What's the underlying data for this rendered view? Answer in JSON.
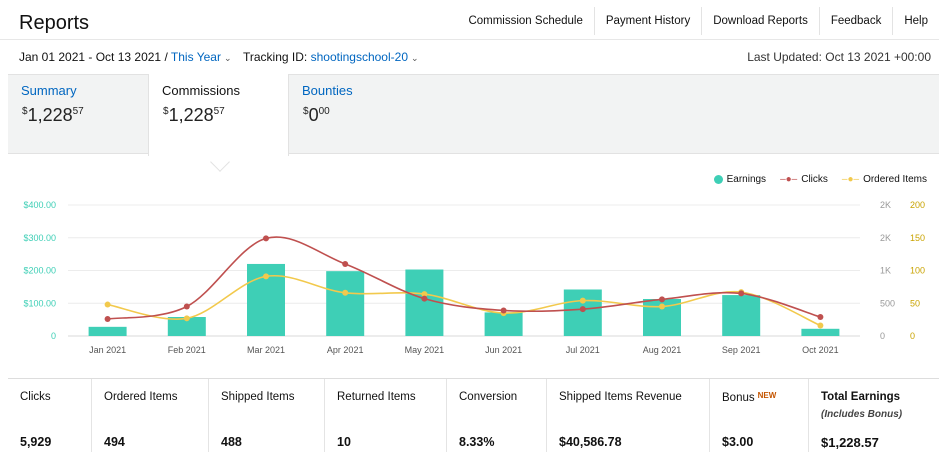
{
  "header": {
    "title": "Reports",
    "links": [
      "Commission Schedule",
      "Payment History",
      "Download Reports",
      "Feedback",
      "Help"
    ]
  },
  "filters": {
    "date_range": "Jan 01 2021 - Oct 13 2021",
    "separator": "/",
    "period": "This Year",
    "tracking_label": "Tracking ID:",
    "tracking_id": "shootingschool-20",
    "last_updated": "Last Updated: Oct 13 2021 +00:00"
  },
  "tabs": [
    {
      "label": "Summary",
      "value_sign": "$",
      "value_main": "1,228",
      "value_cents": "57",
      "selected": false
    },
    {
      "label": "Commissions",
      "value_sign": "$",
      "value_main": "1,228",
      "value_cents": "57",
      "selected": true
    },
    {
      "label": "Bounties",
      "value_sign": "$",
      "value_main": "0",
      "value_cents": "00",
      "selected": false
    }
  ],
  "colors": {
    "earnings": "#3ecfb6",
    "clicks": "#bf504f",
    "ordered": "#f2c94c",
    "link": "#0066c0",
    "new_badge": "#c45500"
  },
  "chart_data": {
    "type": "bar",
    "legend_position": "top-right",
    "categories": [
      "Jan 2021",
      "Feb 2021",
      "Mar 2021",
      "Apr 2021",
      "May 2021",
      "Jun 2021",
      "Jul 2021",
      "Aug 2021",
      "Sep 2021",
      "Oct 2021"
    ],
    "series": [
      {
        "name": "Earnings",
        "type": "bar",
        "axis": "left",
        "color": "#3ecfb6",
        "values": [
          28,
          58,
          220,
          198,
          203,
          72,
          142,
          113,
          125,
          22
        ]
      },
      {
        "name": "Clicks",
        "type": "line",
        "axis": "right-outer",
        "color": "#bf504f",
        "values": [
          260,
          450,
          1490,
          1100,
          570,
          390,
          410,
          560,
          650,
          290
        ]
      },
      {
        "name": "Ordered Items",
        "type": "line",
        "axis": "right-inner",
        "color": "#f2c94c",
        "values": [
          48,
          27,
          91,
          66,
          64,
          35,
          54,
          45,
          67,
          16
        ]
      }
    ],
    "ylim_left": [
      0,
      400
    ],
    "ylim_right_outer": [
      0,
      2000
    ],
    "ylim_right_inner": [
      0,
      200
    ],
    "left_ticks": [
      "0",
      "$100.00",
      "$200.00",
      "$300.00",
      "$400.00"
    ],
    "right_outer_ticks": [
      "0",
      "500",
      "1K",
      "2K",
      "2K"
    ],
    "right_inner_ticks": [
      "0",
      "50",
      "100",
      "150",
      "200"
    ],
    "grid": true
  },
  "stats": [
    {
      "label": "Clicks",
      "value": "5,929"
    },
    {
      "label": "Ordered Items",
      "value": "494"
    },
    {
      "label": "Shipped Items",
      "value": "488"
    },
    {
      "label": "Returned Items",
      "value": "10"
    },
    {
      "label": "Conversion",
      "value": "8.33%"
    },
    {
      "label": "Shipped Items Revenue",
      "value": "$40,586.78"
    },
    {
      "label": "Bonus",
      "badge": "NEW",
      "value": "$3.00"
    },
    {
      "label": "Total Earnings",
      "sublabel": "(Includes Bonus)",
      "value": "$1,228.57"
    }
  ]
}
